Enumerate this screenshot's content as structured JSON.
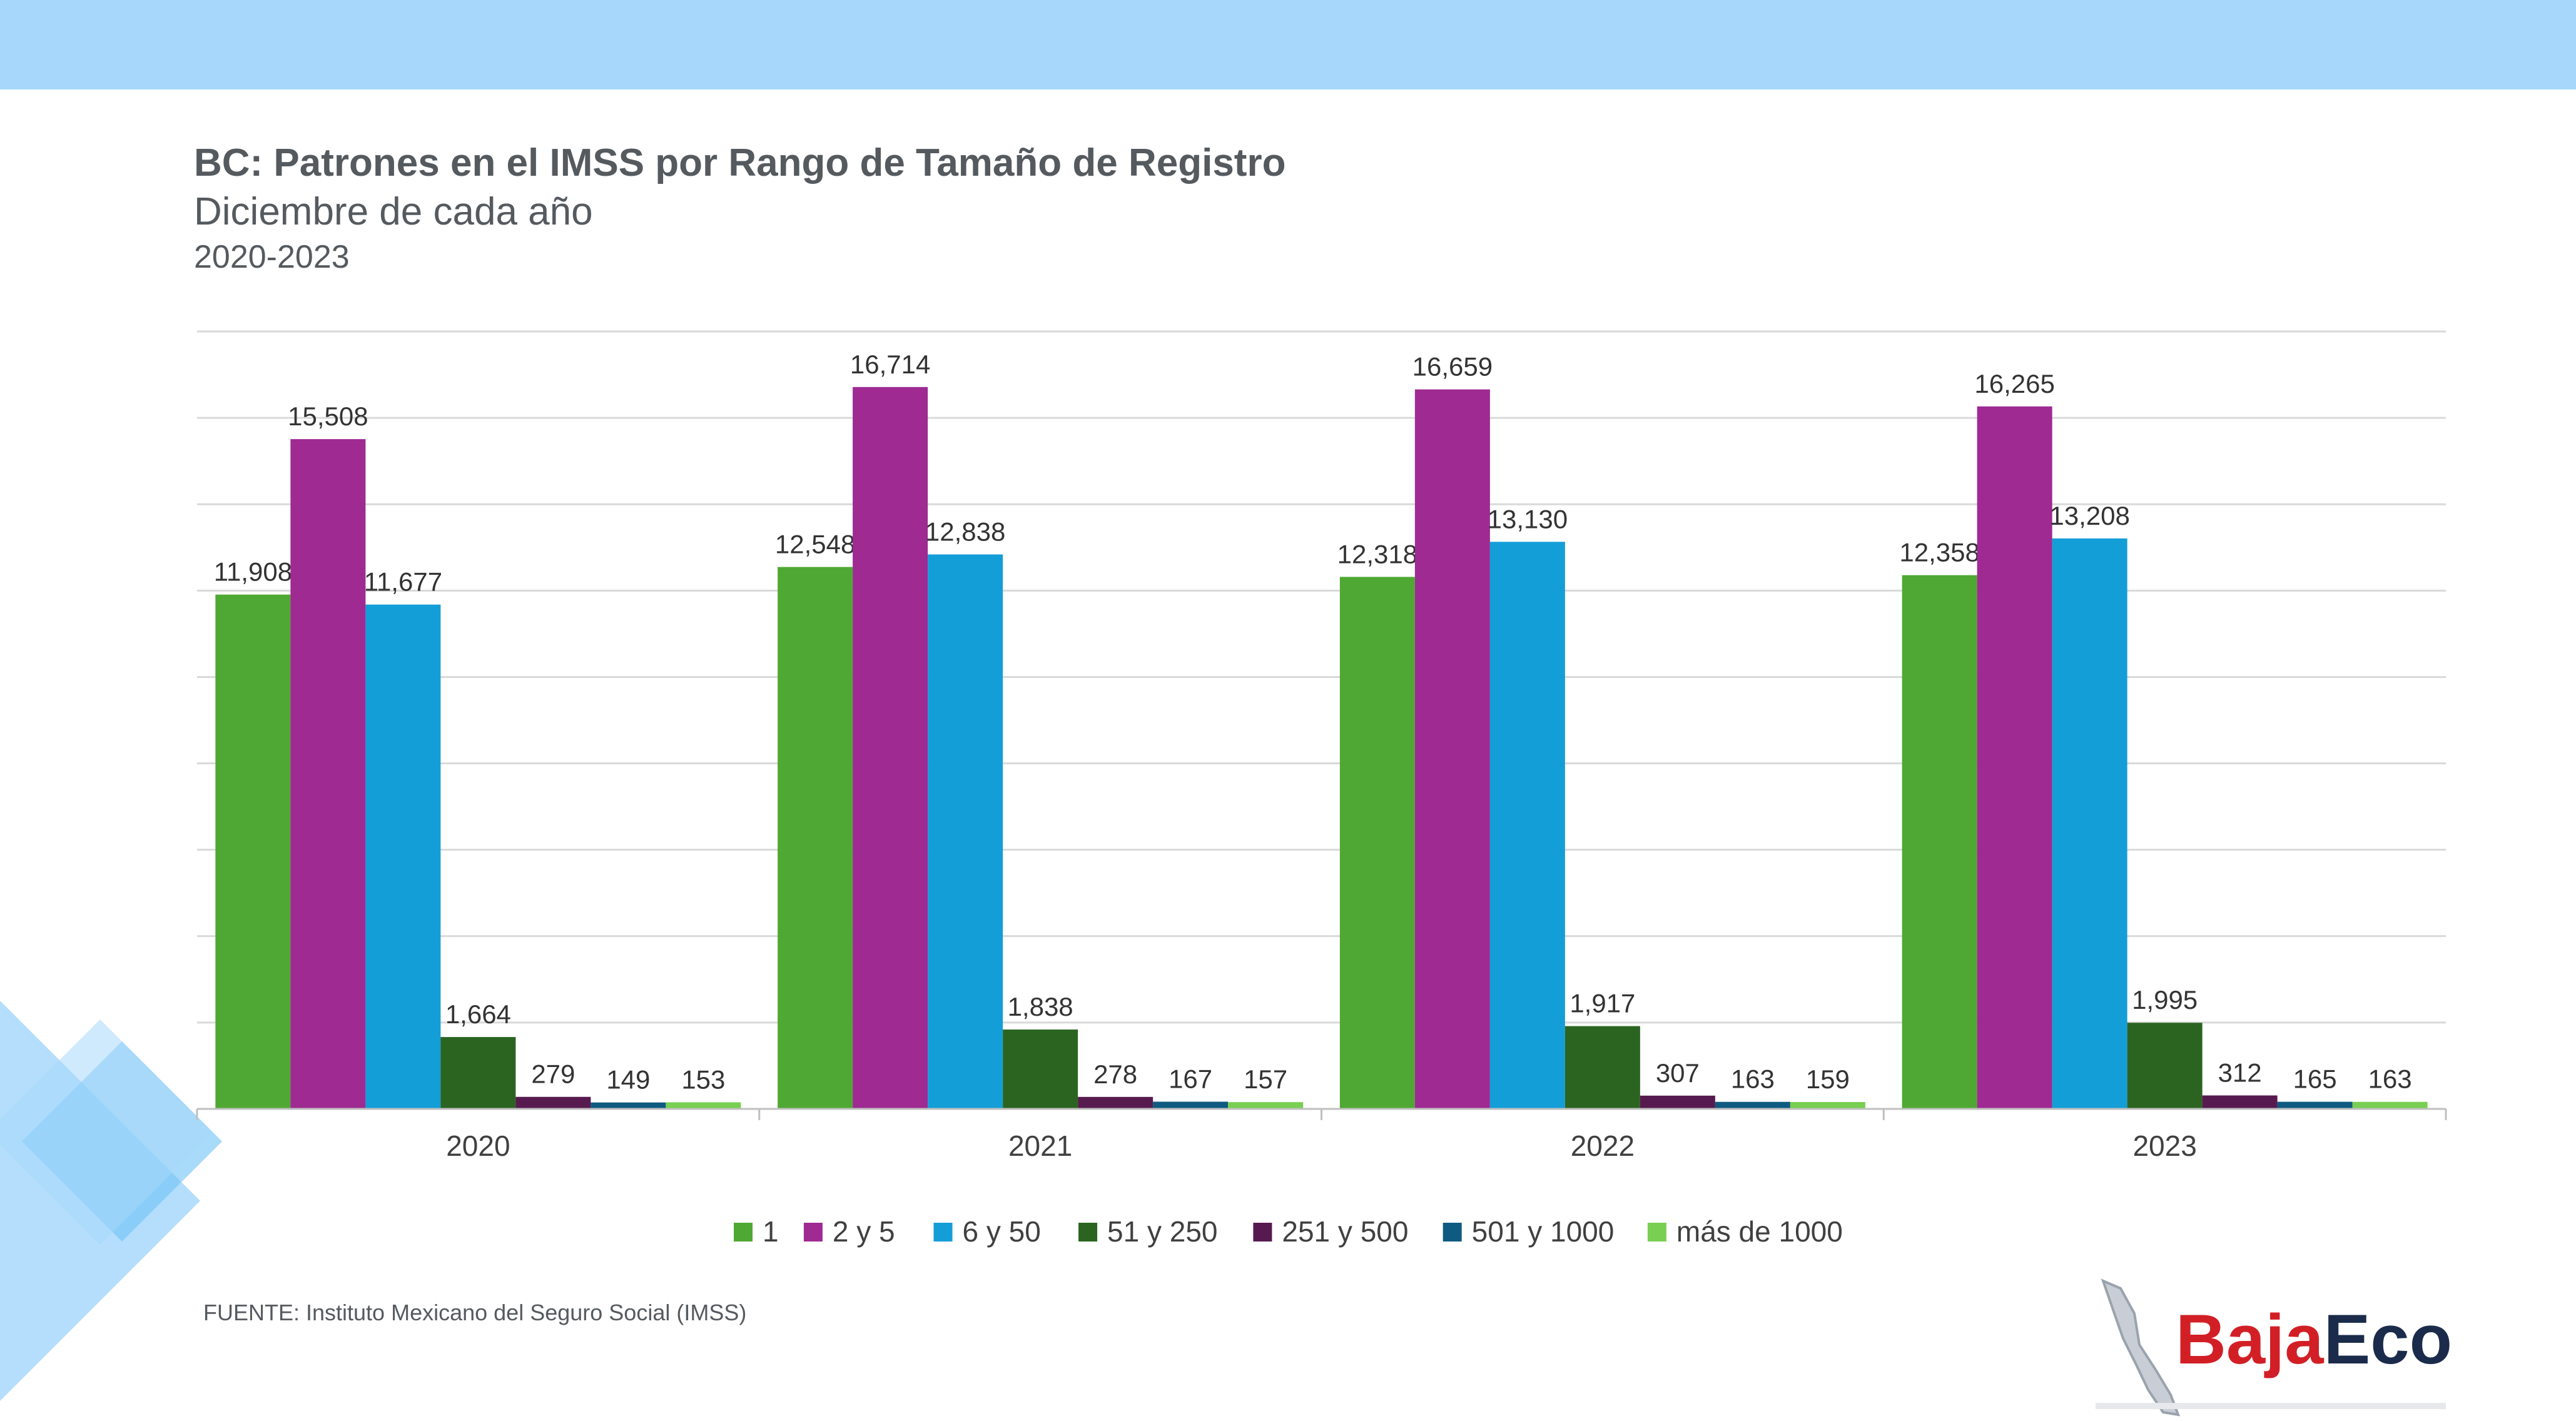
{
  "header": {
    "title": "BC: Patrones en el IMSS por Rango de Tamaño de Registro",
    "subtitle": "Diciembre de cada año",
    "period": "2020-2023"
  },
  "source": "FUENTE: Instituto Mexicano del Seguro Social (IMSS)",
  "logo": {
    "part1": "Baja",
    "part2": "Eco"
  },
  "colors": {
    "top_band": "#a7d8fb",
    "text": "#555a5f",
    "logo_red": "#d21f26",
    "logo_navy": "#1b2b4b",
    "deco_light": "#a7d8fb",
    "deco_mid": "#6ec1f5"
  },
  "chart_data": {
    "type": "bar",
    "categories": [
      "2020",
      "2021",
      "2022",
      "2023"
    ],
    "ylim": [
      0,
      18000
    ],
    "grid": true,
    "legend_position": "bottom",
    "series": [
      {
        "name": "1",
        "color": "#4fa833",
        "values": [
          11908,
          12548,
          12318,
          12358
        ],
        "labels": [
          "11,908",
          "12,548",
          "12,318",
          "12,358"
        ]
      },
      {
        "name": "2 y 5",
        "color": "#9e2a92",
        "values": [
          15508,
          16714,
          16659,
          16265
        ],
        "labels": [
          "15,508",
          "16,714",
          "16,659",
          "16,265"
        ]
      },
      {
        "name": "6 y 50",
        "color": "#139ed8",
        "values": [
          11677,
          12838,
          13130,
          13208
        ],
        "labels": [
          "11,677",
          "12,838",
          "13,130",
          "13,208"
        ]
      },
      {
        "name": "51 y 250",
        "color": "#2b6420",
        "values": [
          1664,
          1838,
          1917,
          1995
        ],
        "labels": [
          "1,664",
          "1,838",
          "1,917",
          "1,995"
        ]
      },
      {
        "name": "251 y 500",
        "color": "#571a4f",
        "values": [
          279,
          278,
          307,
          312
        ],
        "labels": [
          "279",
          "278",
          "307",
          "312"
        ]
      },
      {
        "name": "501 y 1000",
        "color": "#0f5a80",
        "values": [
          149,
          167,
          163,
          165
        ],
        "labels": [
          "149",
          "167",
          "163",
          "165"
        ]
      },
      {
        "name": "más de 1000",
        "color": "#78cf52",
        "values": [
          153,
          157,
          159,
          163
        ],
        "labels": [
          "153",
          "157",
          "159",
          "163"
        ]
      }
    ]
  }
}
